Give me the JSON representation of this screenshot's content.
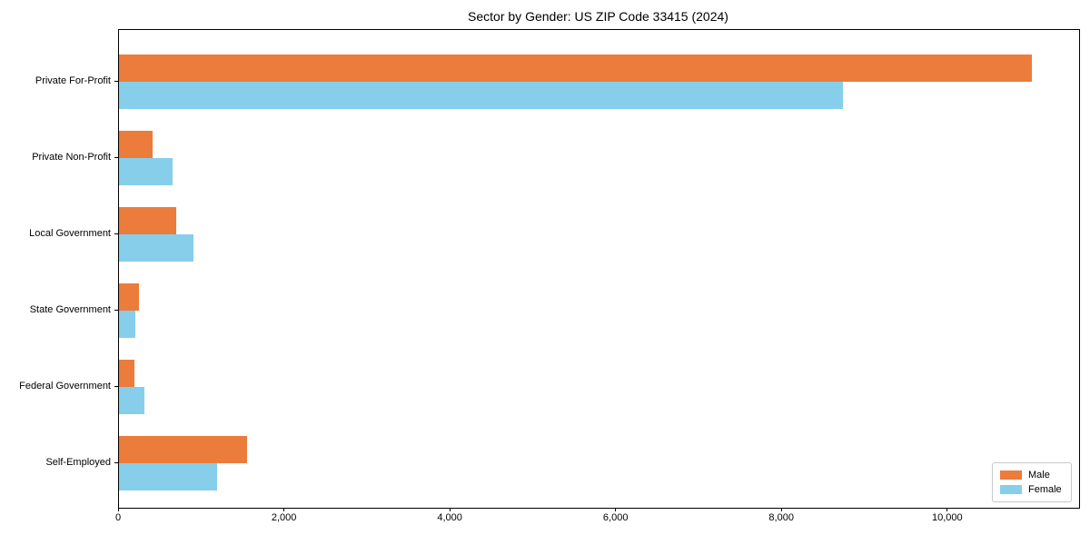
{
  "chart_data": {
    "type": "bar",
    "orientation": "horizontal",
    "title": "Sector by Gender: US ZIP Code 33415 (2024)",
    "xlabel": "",
    "ylabel": "",
    "grid": false,
    "xlim": [
      0,
      11580
    ],
    "categories": [
      "Private For-Profit",
      "Private Non-Profit",
      "Local Government",
      "State Government",
      "Federal Government",
      "Self-Employed"
    ],
    "series": [
      {
        "name": "Male",
        "color": "#eb7c3c",
        "values": [
          11010,
          410,
          690,
          240,
          190,
          1540
        ]
      },
      {
        "name": "Female",
        "color": "#87ceeb",
        "values": [
          8730,
          650,
          900,
          200,
          310,
          1180
        ]
      }
    ],
    "x_ticks": [
      {
        "value": 0,
        "label": "0"
      },
      {
        "value": 2000,
        "label": "2,000"
      },
      {
        "value": 4000,
        "label": "4,000"
      },
      {
        "value": 6000,
        "label": "6,000"
      },
      {
        "value": 8000,
        "label": "8,000"
      },
      {
        "value": 10000,
        "label": "10,000"
      }
    ],
    "legend": {
      "position": "lower right",
      "entries": [
        "Male",
        "Female"
      ]
    }
  },
  "layout_colors": {
    "background": "#ffffff",
    "axis": "#000000",
    "legend_border": "#c9c9c9"
  }
}
